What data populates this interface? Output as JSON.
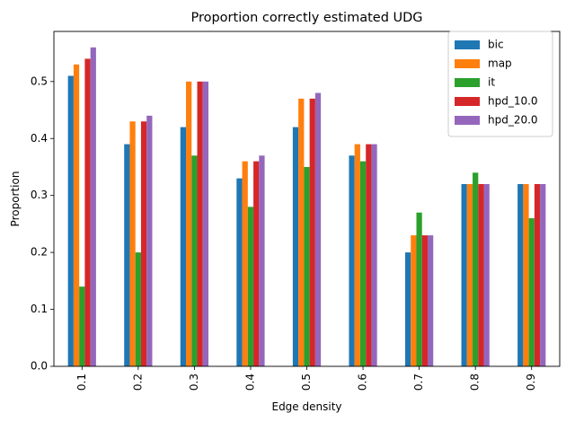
{
  "chart_data": {
    "type": "bar",
    "title": "Proportion correctly estimated UDG",
    "xlabel": "Edge density",
    "ylabel": "Proportion",
    "categories": [
      "0.1",
      "0.2",
      "0.3",
      "0.4",
      "0.5",
      "0.6",
      "0.7",
      "0.8",
      "0.9"
    ],
    "ylim": [
      0,
      0.588
    ],
    "yticks": [
      "0.0",
      "0.1",
      "0.2",
      "0.3",
      "0.4",
      "0.5"
    ],
    "grid": false,
    "legend_position": "top-right",
    "series": [
      {
        "name": "bic",
        "color": "#1f77b4",
        "values": [
          0.51,
          0.39,
          0.42,
          0.33,
          0.42,
          0.37,
          0.2,
          0.32,
          0.32
        ]
      },
      {
        "name": "map",
        "color": "#ff7f0e",
        "values": [
          0.53,
          0.43,
          0.5,
          0.36,
          0.47,
          0.39,
          0.23,
          0.32,
          0.32
        ]
      },
      {
        "name": "it",
        "color": "#2ca02c",
        "values": [
          0.14,
          0.2,
          0.37,
          0.28,
          0.35,
          0.36,
          0.27,
          0.34,
          0.26
        ]
      },
      {
        "name": "hpd_10.0",
        "color": "#d62728",
        "values": [
          0.54,
          0.43,
          0.5,
          0.36,
          0.47,
          0.39,
          0.23,
          0.32,
          0.32
        ]
      },
      {
        "name": "hpd_20.0",
        "color": "#9467bd",
        "values": [
          0.56,
          0.44,
          0.5,
          0.37,
          0.48,
          0.39,
          0.23,
          0.32,
          0.32
        ]
      }
    ]
  }
}
